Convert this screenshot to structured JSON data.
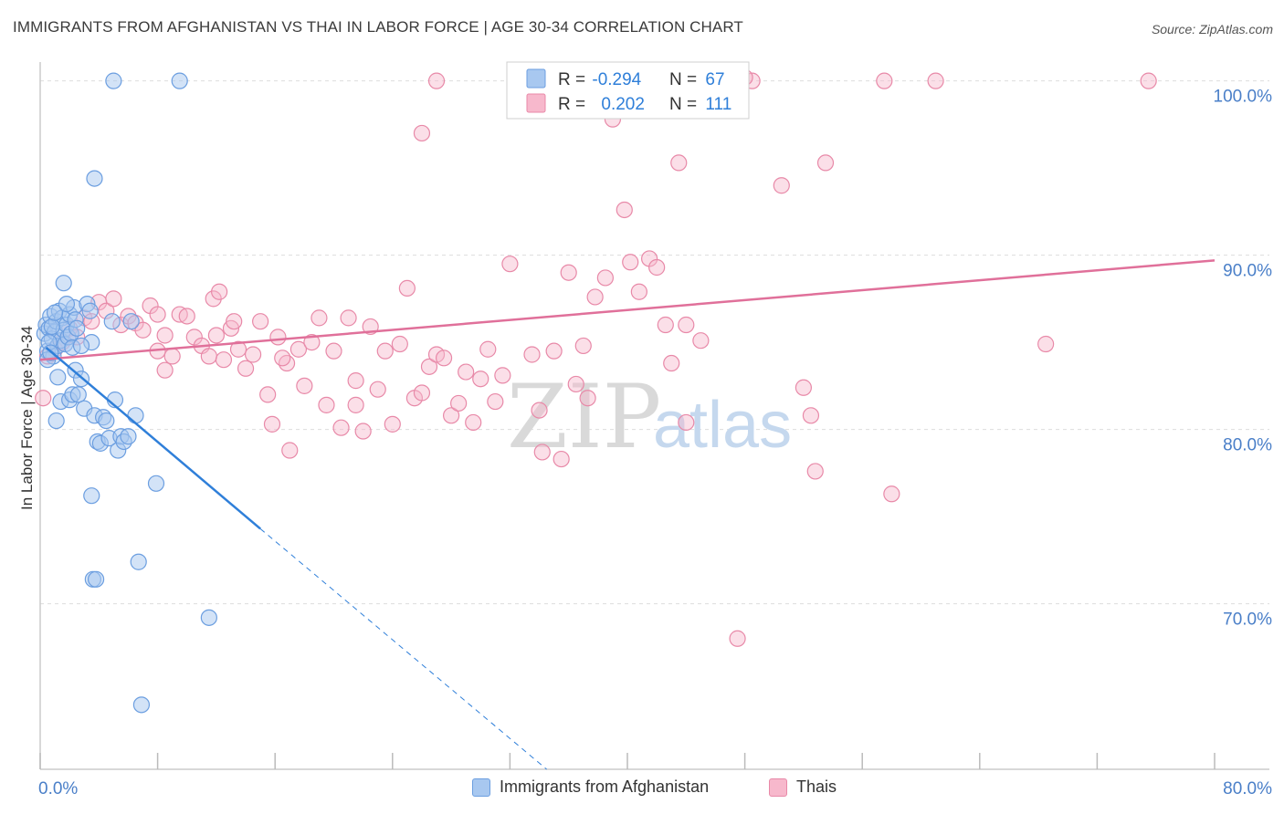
{
  "title": "IMMIGRANTS FROM AFGHANISTAN VS THAI IN LABOR FORCE | AGE 30-34 CORRELATION CHART",
  "source": "Source: ZipAtlas.com",
  "watermark": {
    "zip": "ZIP",
    "atlas": "atlas"
  },
  "colors": {
    "blue_fill": "#a8c8f0",
    "blue_stroke": "#6b9ee0",
    "blue_line": "#2f7fd9",
    "pink_fill": "#f7b8cc",
    "pink_stroke": "#e889a8",
    "pink_line": "#e0709a",
    "axis_label": "#4a7fc8",
    "grid": "#dddddd"
  },
  "legend_top": {
    "rows": [
      {
        "r_label": "R = ",
        "r_value": "-0.294",
        "n_label": "N = ",
        "n_value": "67",
        "series": "blue"
      },
      {
        "r_label": "R = ",
        "r_value": "0.202",
        "n_label": "N = ",
        "n_value": "111",
        "series": "pink"
      }
    ]
  },
  "legend_bottom": [
    {
      "label": "Immigrants from Afghanistan",
      "series": "blue"
    },
    {
      "label": "Thais",
      "series": "pink"
    }
  ],
  "chart_data": {
    "type": "scatter",
    "title": "IMMIGRANTS FROM AFGHANISTAN VS THAI IN LABOR FORCE | AGE 30-34 CORRELATION CHART",
    "xlabel": "",
    "ylabel": "In Labor Force | Age 30-34",
    "xlim": [
      0,
      80
    ],
    "ylim": [
      60.5,
      101.5
    ],
    "x_tick_labels": [
      "0.0%",
      "80.0%"
    ],
    "y_ticks": [
      70,
      80,
      90,
      100
    ],
    "y_tick_labels": [
      "70.0%",
      "80.0%",
      "90.0%",
      "100.0%"
    ],
    "grid": true,
    "legend_placement": "top-center",
    "series": [
      {
        "name": "Immigrants from Afghanistan",
        "color": "#a8c8f0",
        "trend": {
          "x": [
            0.4,
            15.0
          ],
          "y": [
            84.7,
            74.3
          ],
          "dashed_to": {
            "x": 34.5,
            "y": 60.5
          }
        },
        "points": [
          [
            0.3,
            85.5
          ],
          [
            0.4,
            86.0
          ],
          [
            0.5,
            84.5
          ],
          [
            0.6,
            85.8
          ],
          [
            0.7,
            86.5
          ],
          [
            0.8,
            85.2
          ],
          [
            0.9,
            84.2
          ],
          [
            1.0,
            85.6
          ],
          [
            1.1,
            86.2
          ],
          [
            1.2,
            84.8
          ],
          [
            0.5,
            84.0
          ],
          [
            1.3,
            86.8
          ],
          [
            1.4,
            85.1
          ],
          [
            1.5,
            86.4
          ],
          [
            1.6,
            85.7
          ],
          [
            1.7,
            84.9
          ],
          [
            1.8,
            86.0
          ],
          [
            1.9,
            85.3
          ],
          [
            2.0,
            86.6
          ],
          [
            2.1,
            85.5
          ],
          [
            2.2,
            84.7
          ],
          [
            2.3,
            87.0
          ],
          [
            2.4,
            86.3
          ],
          [
            2.5,
            85.8
          ],
          [
            0.6,
            85.0
          ],
          [
            0.7,
            84.4
          ],
          [
            0.8,
            85.9
          ],
          [
            1.0,
            86.7
          ],
          [
            1.2,
            83.0
          ],
          [
            1.4,
            81.6
          ],
          [
            1.6,
            88.4
          ],
          [
            1.8,
            87.2
          ],
          [
            2.0,
            81.7
          ],
          [
            2.2,
            82.0
          ],
          [
            2.4,
            83.4
          ],
          [
            2.6,
            82.0
          ],
          [
            2.8,
            82.9
          ],
          [
            3.0,
            81.2
          ],
          [
            3.2,
            87.2
          ],
          [
            3.4,
            86.8
          ],
          [
            3.5,
            85.0
          ],
          [
            3.7,
            80.8
          ],
          [
            3.9,
            79.3
          ],
          [
            4.1,
            79.2
          ],
          [
            4.3,
            80.7
          ],
          [
            4.5,
            80.5
          ],
          [
            4.7,
            79.5
          ],
          [
            4.9,
            86.2
          ],
          [
            5.1,
            81.7
          ],
          [
            5.3,
            78.8
          ],
          [
            5.5,
            79.6
          ],
          [
            5.7,
            79.3
          ],
          [
            6.0,
            79.6
          ],
          [
            6.2,
            86.2
          ],
          [
            6.5,
            80.8
          ],
          [
            6.7,
            72.4
          ],
          [
            3.5,
            76.2
          ],
          [
            3.6,
            71.4
          ],
          [
            3.8,
            71.4
          ],
          [
            7.9,
            76.9
          ],
          [
            9.5,
            100.0
          ],
          [
            5.0,
            100.0
          ],
          [
            3.7,
            94.4
          ],
          [
            11.5,
            69.2
          ],
          [
            6.9,
            64.2
          ],
          [
            1.1,
            80.5
          ],
          [
            2.8,
            84.8
          ]
        ]
      },
      {
        "name": "Thais",
        "color": "#f7b8cc",
        "trend": {
          "x": [
            0.0,
            80.0
          ],
          "y": [
            84.0,
            89.7
          ]
        },
        "points": [
          [
            0.2,
            81.8
          ],
          [
            0.5,
            84.2
          ],
          [
            1.0,
            84.6
          ],
          [
            1.5,
            85.0
          ],
          [
            2.0,
            85.8
          ],
          [
            2.5,
            85.3
          ],
          [
            3.0,
            86.4
          ],
          [
            3.5,
            86.2
          ],
          [
            4.0,
            87.3
          ],
          [
            4.5,
            86.8
          ],
          [
            5.0,
            87.5
          ],
          [
            5.5,
            86.0
          ],
          [
            6.0,
            86.5
          ],
          [
            6.5,
            86.1
          ],
          [
            7.0,
            85.7
          ],
          [
            7.5,
            87.1
          ],
          [
            8.0,
            86.6
          ],
          [
            8.5,
            85.4
          ],
          [
            8.0,
            84.5
          ],
          [
            8.5,
            83.4
          ],
          [
            9.0,
            84.2
          ],
          [
            9.5,
            86.6
          ],
          [
            10.0,
            86.5
          ],
          [
            10.5,
            85.3
          ],
          [
            11.0,
            84.8
          ],
          [
            11.5,
            84.2
          ],
          [
            12.0,
            85.4
          ],
          [
            12.5,
            84.0
          ],
          [
            13.0,
            85.8
          ],
          [
            13.5,
            84.6
          ],
          [
            11.8,
            87.5
          ],
          [
            12.2,
            87.9
          ],
          [
            13.2,
            86.2
          ],
          [
            14.0,
            83.5
          ],
          [
            14.5,
            84.3
          ],
          [
            15.0,
            86.2
          ],
          [
            15.5,
            82.0
          ],
          [
            15.8,
            80.3
          ],
          [
            16.2,
            85.3
          ],
          [
            16.8,
            83.8
          ],
          [
            17.0,
            78.8
          ],
          [
            17.6,
            84.6
          ],
          [
            18.0,
            82.5
          ],
          [
            18.5,
            85.0
          ],
          [
            19.0,
            86.4
          ],
          [
            19.5,
            81.4
          ],
          [
            20.0,
            84.5
          ],
          [
            20.5,
            80.1
          ],
          [
            21.0,
            86.4
          ],
          [
            21.5,
            82.8
          ],
          [
            22.0,
            79.9
          ],
          [
            22.5,
            85.9
          ],
          [
            23.0,
            82.3
          ],
          [
            23.5,
            84.5
          ],
          [
            24.0,
            80.3
          ],
          [
            24.5,
            84.9
          ],
          [
            25.0,
            88.1
          ],
          [
            25.5,
            81.8
          ],
          [
            26.0,
            82.1
          ],
          [
            26.5,
            83.6
          ],
          [
            27.0,
            84.3
          ],
          [
            27.5,
            84.1
          ],
          [
            28.0,
            80.8
          ],
          [
            28.5,
            81.5
          ],
          [
            29.0,
            83.3
          ],
          [
            29.5,
            80.4
          ],
          [
            30.0,
            82.9
          ],
          [
            30.5,
            84.6
          ],
          [
            31.0,
            81.6
          ],
          [
            31.5,
            83.1
          ],
          [
            32.0,
            89.5
          ],
          [
            33.5,
            84.3
          ],
          [
            34.0,
            81.1
          ],
          [
            34.2,
            78.7
          ],
          [
            35.0,
            84.5
          ],
          [
            35.5,
            78.3
          ],
          [
            36.0,
            89.0
          ],
          [
            36.5,
            82.6
          ],
          [
            37.0,
            84.8
          ],
          [
            37.3,
            81.8
          ],
          [
            37.8,
            87.6
          ],
          [
            38.5,
            88.7
          ],
          [
            39.0,
            97.8
          ],
          [
            39.8,
            92.6
          ],
          [
            40.2,
            89.6
          ],
          [
            40.8,
            87.9
          ],
          [
            41.5,
            89.8
          ],
          [
            42.0,
            89.3
          ],
          [
            42.6,
            86.0
          ],
          [
            43.0,
            83.8
          ],
          [
            44.0,
            86.0
          ],
          [
            45.0,
            85.1
          ],
          [
            43.5,
            95.3
          ],
          [
            44.0,
            80.4
          ],
          [
            48.5,
            100.0
          ],
          [
            48.0,
            100.2
          ],
          [
            50.5,
            94.0
          ],
          [
            47.5,
            68.0
          ],
          [
            52.0,
            82.4
          ],
          [
            52.5,
            80.8
          ],
          [
            52.8,
            77.6
          ],
          [
            53.5,
            95.3
          ],
          [
            57.5,
            100.0
          ],
          [
            58.0,
            76.3
          ],
          [
            61.0,
            100.0
          ],
          [
            75.5,
            100.0
          ],
          [
            68.5,
            84.9
          ],
          [
            26.0,
            97.0
          ],
          [
            27.0,
            100.0
          ],
          [
            21.5,
            81.4
          ],
          [
            16.5,
            84.1
          ]
        ]
      }
    ]
  }
}
